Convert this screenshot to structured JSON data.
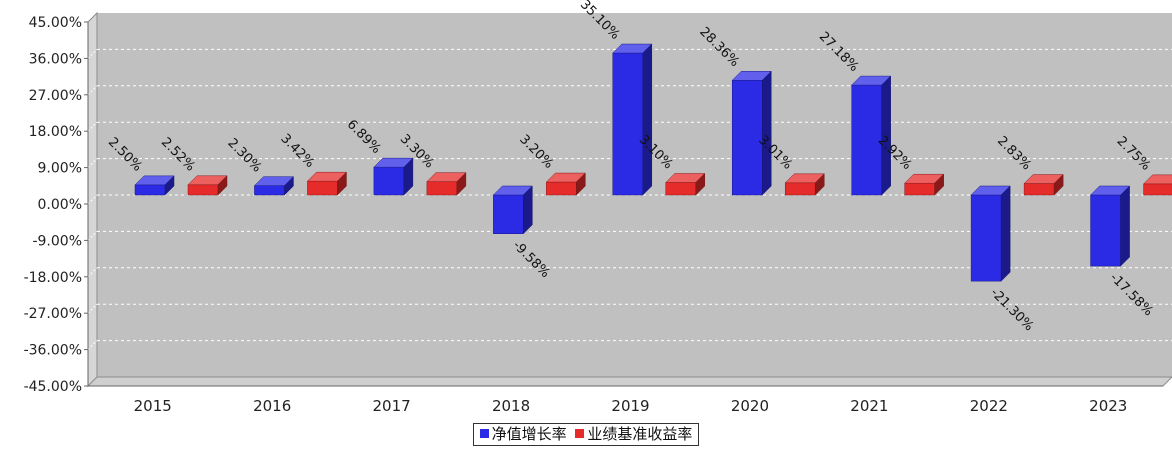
{
  "chart_data": {
    "type": "bar",
    "title": "",
    "xlabel": "",
    "ylabel": "",
    "categories": [
      "2015",
      "2016",
      "2017",
      "2018",
      "2019",
      "2020",
      "2021",
      "2022",
      "2023"
    ],
    "series": [
      {
        "name": "净值增长率",
        "color": "#2b2be6",
        "values": [
          2.5,
          2.3,
          6.89,
          -9.58,
          35.1,
          28.36,
          27.18,
          -21.3,
          -17.58
        ],
        "labels": [
          "2.50%",
          "2.30%",
          "6.89%",
          "-9.58%",
          "35.10%",
          "28.36%",
          "27.18%",
          "-21.30%",
          "-17.58%"
        ]
      },
      {
        "name": "业绩基准收益率",
        "color": "#e62b2b",
        "values": [
          2.52,
          3.42,
          3.3,
          3.2,
          3.1,
          3.01,
          2.92,
          2.83,
          2.75
        ],
        "labels": [
          "2.52%",
          "3.42%",
          "3.30%",
          "3.20%",
          "3.10%",
          "3.01%",
          "2.92%",
          "2.83%",
          "2.75%"
        ]
      }
    ],
    "ylim": [
      -45,
      45
    ],
    "yticks": [
      45,
      36,
      27,
      18,
      9,
      0,
      -9,
      -18,
      -27,
      -36,
      -45
    ],
    "ytick_labels": [
      "45.00%",
      "36.00%",
      "27.00%",
      "18.00%",
      "9.00%",
      "0.00%",
      "-9.00%",
      "-18.00%",
      "-27.00%",
      "-36.00%",
      "-45.00%"
    ],
    "grid": true,
    "legend_position": "bottom-center",
    "style": "3d"
  }
}
